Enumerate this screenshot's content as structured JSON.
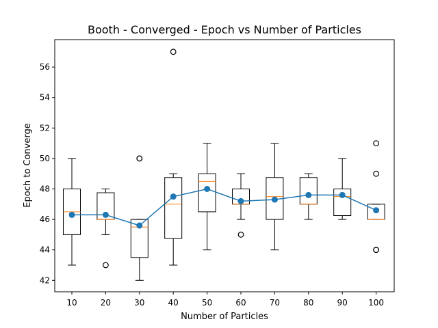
{
  "chart_data": {
    "type": "box",
    "title": "Booth - Converged - Epoch vs Number of Particles",
    "xlabel": "Number of Particles",
    "ylabel": "Epoch to Converge",
    "ylim": [
      41.25,
      57.8
    ],
    "yticks": [
      42,
      44,
      46,
      48,
      50,
      52,
      54,
      56
    ],
    "categories": [
      "10",
      "20",
      "30",
      "40",
      "50",
      "60",
      "70",
      "80",
      "90",
      "100"
    ],
    "boxes": [
      {
        "whislo": 43,
        "q1": 45,
        "med": 46.5,
        "q3": 48,
        "whishi": 50,
        "fliers": []
      },
      {
        "whislo": 45,
        "q1": 46,
        "med": 46,
        "q3": 47.75,
        "whishi": 48,
        "fliers": [
          43
        ]
      },
      {
        "whislo": 42,
        "q1": 43.5,
        "med": 45.5,
        "q3": 46,
        "whishi": 46,
        "fliers": [
          50,
          50
        ]
      },
      {
        "whislo": 43,
        "q1": 44.75,
        "med": 47,
        "q3": 48.75,
        "whishi": 49,
        "fliers": [
          57
        ]
      },
      {
        "whislo": 44,
        "q1": 46.5,
        "med": 48.5,
        "q3": 49,
        "whishi": 51,
        "fliers": []
      },
      {
        "whislo": 46,
        "q1": 47,
        "med": 47,
        "q3": 48,
        "whishi": 49,
        "fliers": [
          45
        ]
      },
      {
        "whislo": 44,
        "q1": 46,
        "med": 47.5,
        "q3": 48.75,
        "whishi": 51,
        "fliers": []
      },
      {
        "whislo": 46,
        "q1": 47,
        "med": 47,
        "q3": 48.75,
        "whishi": 49,
        "fliers": []
      },
      {
        "whislo": 46,
        "q1": 46.25,
        "med": 47.5,
        "q3": 48,
        "whishi": 50,
        "fliers": []
      },
      {
        "whislo": 46,
        "q1": 46,
        "med": 46,
        "q3": 47,
        "whishi": 47,
        "fliers": [
          51,
          49,
          44,
          44
        ]
      }
    ],
    "mean_series": [
      46.3,
      46.3,
      45.6,
      47.5,
      48.0,
      47.2,
      47.3,
      47.6,
      47.6,
      46.6
    ],
    "colors": {
      "box": "#000000",
      "median": "#ff7f0e",
      "mean": "#1f77b4"
    },
    "grid": false,
    "legend": "none"
  }
}
